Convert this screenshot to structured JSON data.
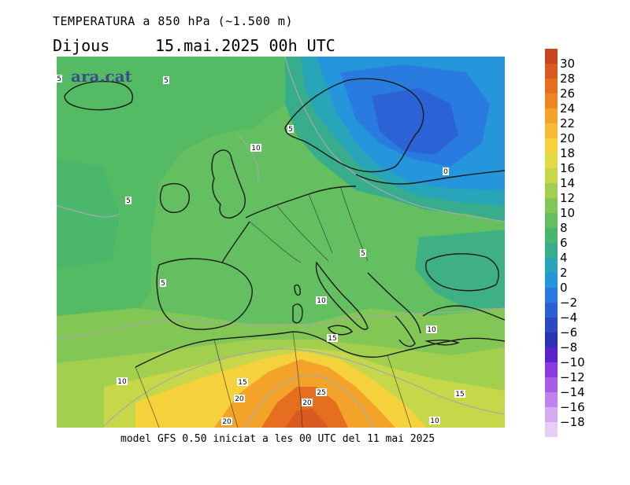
{
  "header": {
    "line1": "TEMPERATURA a 850 hPa (~1.500 m)",
    "day": "Dijous",
    "date": "15.mai.2025 00h UTC"
  },
  "footer": {
    "model_text": "model GFS 0.50 iniciat a les 00 UTC del 11 mai 2025"
  },
  "map": {
    "brand": "ara.cat",
    "contour_labels": [
      "5",
      "5",
      "5",
      "10",
      "5",
      "0",
      "5",
      "5",
      "10",
      "15",
      "10",
      "10",
      "15",
      "20",
      "25",
      "20",
      "15",
      "20",
      "10"
    ]
  },
  "colorbar": {
    "labels": [
      "30",
      "28",
      "26",
      "24",
      "22",
      "20",
      "18",
      "16",
      "14",
      "12",
      "10",
      "8",
      "6",
      "4",
      "2",
      "0",
      "−2",
      "−4",
      "−6",
      "−8",
      "−10",
      "−12",
      "−14",
      "−16",
      "−18"
    ],
    "colors": [
      "#c8451e",
      "#d85a20",
      "#e66f1f",
      "#ef8624",
      "#f4a32a",
      "#f7bb35",
      "#f5d23c",
      "#e2da45",
      "#c6d74a",
      "#a3cf4f",
      "#82c655",
      "#63bf5f",
      "#48b66c",
      "#38ad8b",
      "#28a5b8",
      "#2596dc",
      "#2a78e0",
      "#2c5fd4",
      "#2c47c2",
      "#2a33b0",
      "#5a24cc",
      "#8c3ae2",
      "#a95ce8",
      "#c083ec",
      "#d6aaf0",
      "#e8cdf6"
    ]
  }
}
